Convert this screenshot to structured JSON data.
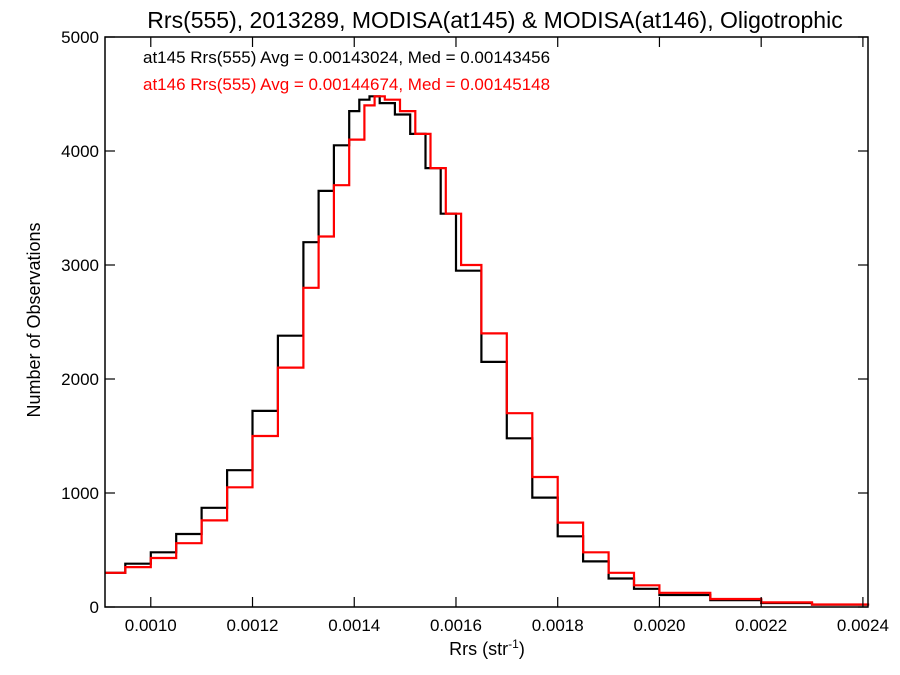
{
  "chart_data": {
    "type": "line",
    "style": "histogram-step",
    "title": "Rrs(555), 2013289, MODISA(at145) & MODISA(at146), Oligotrophic",
    "xlabel": "Rrs (str",
    "xlabel_sup": "-1",
    "xlabel_close": ")",
    "ylabel": "Number of Observations",
    "xlim": [
      0.00091,
      0.00241
    ],
    "ylim": [
      0,
      5000
    ],
    "xticks": [
      "0.0010",
      "0.0012",
      "0.0014",
      "0.0016",
      "0.0018",
      "0.0020",
      "0.0022",
      "0.0024"
    ],
    "xtick_values": [
      0.001,
      0.0012,
      0.0014,
      0.0016,
      0.0018,
      0.002,
      0.0022,
      0.0024
    ],
    "yticks": [
      "0",
      "1000",
      "2000",
      "3000",
      "4000",
      "5000"
    ],
    "ytick_values": [
      0,
      1000,
      2000,
      3000,
      4000,
      5000
    ],
    "grid": false,
    "legend_position": "top-left",
    "annotations": [
      {
        "text": "at145 Rrs(555) Avg = 0.00143024, Med = 0.00143456",
        "color": "#000000"
      },
      {
        "text": "at146 Rrs(555) Avg = 0.00144674, Med = 0.00145148",
        "color": "#ff0000"
      }
    ],
    "series": [
      {
        "color": "#000000",
        "x": [
          0.00091,
          0.00095,
          0.001,
          0.00105,
          0.0011,
          0.00115,
          0.0012,
          0.00125,
          0.0013,
          0.00133,
          0.00136,
          0.00139,
          0.00141,
          0.00143,
          0.00145,
          0.00148,
          0.00151,
          0.00154,
          0.00157,
          0.0016,
          0.00165,
          0.0017,
          0.00175,
          0.0018,
          0.00185,
          0.0019,
          0.00195,
          0.002,
          0.0021,
          0.0022,
          0.0023,
          0.00241
        ],
        "y": [
          300,
          380,
          480,
          640,
          870,
          1200,
          1720,
          2380,
          3200,
          3650,
          4050,
          4350,
          4450,
          4480,
          4420,
          4320,
          4150,
          3850,
          3450,
          2950,
          2150,
          1480,
          960,
          620,
          400,
          250,
          160,
          105,
          60,
          35,
          20,
          12
        ]
      },
      {
        "color": "#ff0000",
        "x": [
          0.00091,
          0.00095,
          0.001,
          0.00105,
          0.0011,
          0.00115,
          0.0012,
          0.00125,
          0.0013,
          0.00133,
          0.00136,
          0.00139,
          0.00142,
          0.00144,
          0.00146,
          0.00149,
          0.00152,
          0.00155,
          0.00158,
          0.00161,
          0.00165,
          0.0017,
          0.00175,
          0.0018,
          0.00185,
          0.0019,
          0.00195,
          0.002,
          0.0021,
          0.0022,
          0.0023,
          0.00241
        ],
        "y": [
          300,
          350,
          430,
          560,
          760,
          1050,
          1500,
          2100,
          2800,
          3250,
          3700,
          4100,
          4400,
          4480,
          4450,
          4350,
          4150,
          3850,
          3450,
          3000,
          2400,
          1700,
          1140,
          740,
          480,
          300,
          190,
          125,
          70,
          40,
          22,
          12
        ]
      }
    ]
  }
}
